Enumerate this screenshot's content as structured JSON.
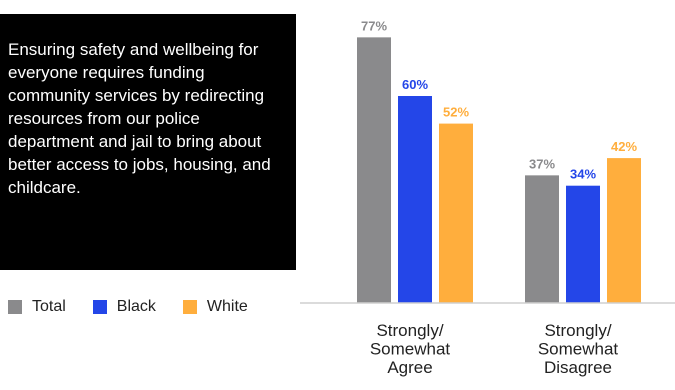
{
  "statement": "Ensuring safety and wellbeing for everyone requires funding community services by redirecting resources from our police department and jail to bring about better access to jobs, housing, and childcare.",
  "legend": [
    {
      "name": "Total",
      "color": "#8a8a8c"
    },
    {
      "name": "Black",
      "color": "#2446e8"
    },
    {
      "name": "White",
      "color": "#ffae3d"
    }
  ],
  "chart_data": {
    "type": "bar",
    "categories": [
      [
        "Strongly/",
        "Somewhat",
        "Agree"
      ],
      [
        "Strongly/",
        "Somewhat",
        "Disagree"
      ]
    ],
    "series": [
      {
        "name": "Total",
        "values": [
          77,
          37
        ],
        "labels": [
          "77%",
          "37%"
        ],
        "color": "#8a8a8c",
        "label_color": "#8a8a8c"
      },
      {
        "name": "Black",
        "values": [
          60,
          34
        ],
        "labels": [
          "60%",
          "34%"
        ],
        "color": "#2446e8",
        "label_color": "#2446e8"
      },
      {
        "name": "White",
        "values": [
          52,
          42
        ],
        "labels": [
          "52%",
          "42%"
        ],
        "color": "#ffae3d",
        "label_color": "#ffae3d"
      }
    ],
    "ylim": [
      0,
      100
    ],
    "grid": false,
    "legend_position": "bottom-left"
  }
}
